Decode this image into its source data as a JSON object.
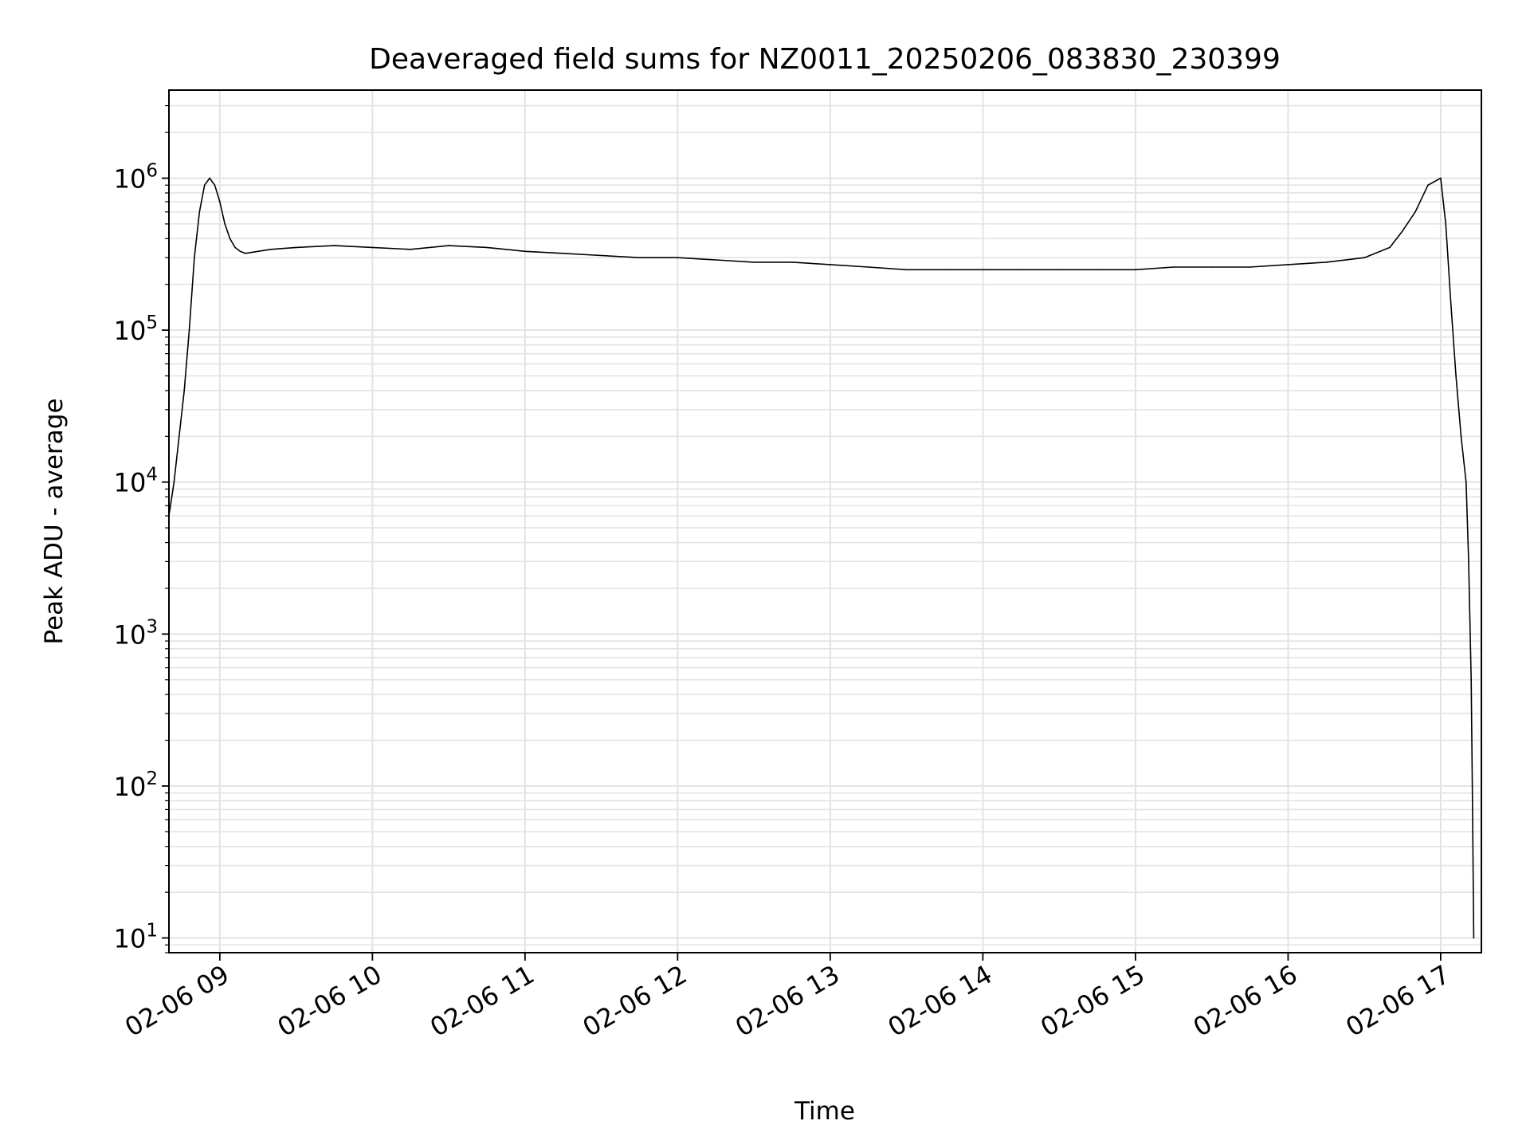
{
  "chart_data": {
    "type": "line",
    "title": "Deaveraged field sums for NZ0011_20250206_083830_230399",
    "xlabel": "Time",
    "ylabel": "Peak ADU - average",
    "yscale": "log",
    "ylim": [
      8,
      3800000
    ],
    "xlim": [
      "2025-02-06T08:40",
      "2025-02-06T17:16"
    ],
    "grid": true,
    "x_ticks": [
      {
        "value": "2025-02-06T09:00",
        "label": "02-06 09"
      },
      {
        "value": "2025-02-06T10:00",
        "label": "02-06 10"
      },
      {
        "value": "2025-02-06T11:00",
        "label": "02-06 11"
      },
      {
        "value": "2025-02-06T12:00",
        "label": "02-06 12"
      },
      {
        "value": "2025-02-06T13:00",
        "label": "02-06 13"
      },
      {
        "value": "2025-02-06T14:00",
        "label": "02-06 14"
      },
      {
        "value": "2025-02-06T15:00",
        "label": "02-06 15"
      },
      {
        "value": "2025-02-06T16:00",
        "label": "02-06 16"
      },
      {
        "value": "2025-02-06T17:00",
        "label": "02-06 17"
      }
    ],
    "y_ticks": [
      {
        "value": 10,
        "base": "10",
        "exp": "1"
      },
      {
        "value": 100,
        "base": "10",
        "exp": "2"
      },
      {
        "value": 1000,
        "base": "10",
        "exp": "3"
      },
      {
        "value": 10000,
        "base": "10",
        "exp": "4"
      },
      {
        "value": 100000,
        "base": "10",
        "exp": "5"
      },
      {
        "value": 1000000,
        "base": "10",
        "exp": "6"
      }
    ],
    "series": [
      {
        "color": "#000000",
        "x": [
          "2025-02-06T08:40",
          "2025-02-06T08:42",
          "2025-02-06T08:44",
          "2025-02-06T08:46",
          "2025-02-06T08:48",
          "2025-02-06T08:50",
          "2025-02-06T08:52",
          "2025-02-06T08:54",
          "2025-02-06T08:56",
          "2025-02-06T08:58",
          "2025-02-06T09:00",
          "2025-02-06T09:02",
          "2025-02-06T09:04",
          "2025-02-06T09:06",
          "2025-02-06T09:08",
          "2025-02-06T09:10",
          "2025-02-06T09:15",
          "2025-02-06T09:20",
          "2025-02-06T09:30",
          "2025-02-06T09:45",
          "2025-02-06T10:00",
          "2025-02-06T10:15",
          "2025-02-06T10:30",
          "2025-02-06T10:45",
          "2025-02-06T11:00",
          "2025-02-06T11:15",
          "2025-02-06T11:30",
          "2025-02-06T11:45",
          "2025-02-06T12:00",
          "2025-02-06T12:15",
          "2025-02-06T12:30",
          "2025-02-06T12:45",
          "2025-02-06T13:00",
          "2025-02-06T13:15",
          "2025-02-06T13:30",
          "2025-02-06T13:45",
          "2025-02-06T14:00",
          "2025-02-06T14:15",
          "2025-02-06T14:30",
          "2025-02-06T14:45",
          "2025-02-06T15:00",
          "2025-02-06T15:15",
          "2025-02-06T15:30",
          "2025-02-06T15:45",
          "2025-02-06T16:00",
          "2025-02-06T16:15",
          "2025-02-06T16:30",
          "2025-02-06T16:40",
          "2025-02-06T16:45",
          "2025-02-06T16:50",
          "2025-02-06T16:55",
          "2025-02-06T17:00",
          "2025-02-06T17:02",
          "2025-02-06T17:04",
          "2025-02-06T17:06",
          "2025-02-06T17:08",
          "2025-02-06T17:10",
          "2025-02-06T17:11",
          "2025-02-06T17:12",
          "2025-02-06T17:12:30",
          "2025-02-06T17:13"
        ],
        "y": [
          6000,
          10000,
          20000,
          40000,
          100000,
          300000,
          600000,
          900000,
          1000000,
          900000,
          700000,
          500000,
          400000,
          350000,
          330000,
          320000,
          330000,
          340000,
          350000,
          360000,
          350000,
          340000,
          360000,
          350000,
          330000,
          320000,
          310000,
          300000,
          300000,
          290000,
          280000,
          280000,
          270000,
          260000,
          250000,
          250000,
          250000,
          250000,
          250000,
          250000,
          250000,
          260000,
          260000,
          260000,
          270000,
          280000,
          300000,
          350000,
          450000,
          600000,
          900000,
          1000000,
          500000,
          150000,
          50000,
          20000,
          10000,
          3000,
          500,
          80,
          10
        ]
      }
    ]
  }
}
